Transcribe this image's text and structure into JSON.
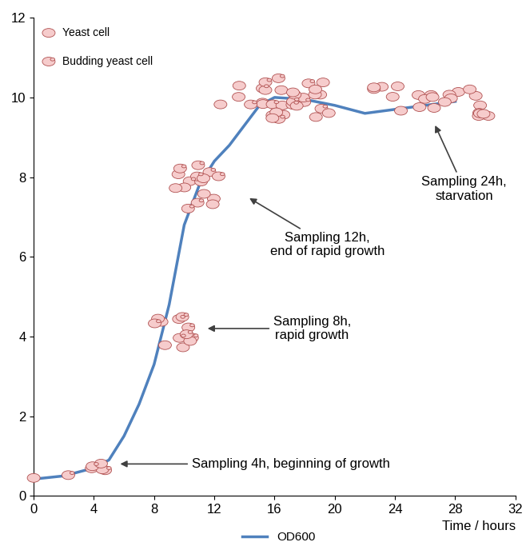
{
  "chart_data": {
    "type": "line",
    "x": [
      0,
      2,
      4,
      5,
      6,
      7,
      8,
      9,
      10,
      11,
      12,
      13,
      14,
      15,
      16,
      18,
      20,
      22,
      24,
      26,
      28
    ],
    "series": [
      {
        "name": "OD600",
        "color": "#4f81bd",
        "values": [
          0.42,
          0.5,
          0.7,
          0.9,
          1.5,
          2.3,
          3.3,
          4.8,
          6.8,
          7.8,
          8.4,
          8.8,
          9.3,
          9.8,
          10.0,
          9.95,
          9.8,
          9.6,
          9.7,
          9.8,
          9.9
        ]
      }
    ],
    "xlabel": "Time / hours",
    "xlim": [
      0,
      32
    ],
    "xticks": [
      0,
      4,
      8,
      12,
      16,
      20,
      24,
      28,
      32
    ],
    "ylim": [
      0,
      12
    ],
    "yticks": [
      0,
      2,
      4,
      6,
      8,
      10,
      12
    ],
    "legend": "lower center",
    "icon_legend": [
      "Yeast cell",
      "Budding yeast cell"
    ],
    "annotations": [
      "Sampling 4h, beginning of growth",
      "Sampling 8h,\nrapid growth",
      "Sampling 12h,\nend of rapid growth",
      "Sampling 24h,\nstarvation"
    ]
  }
}
